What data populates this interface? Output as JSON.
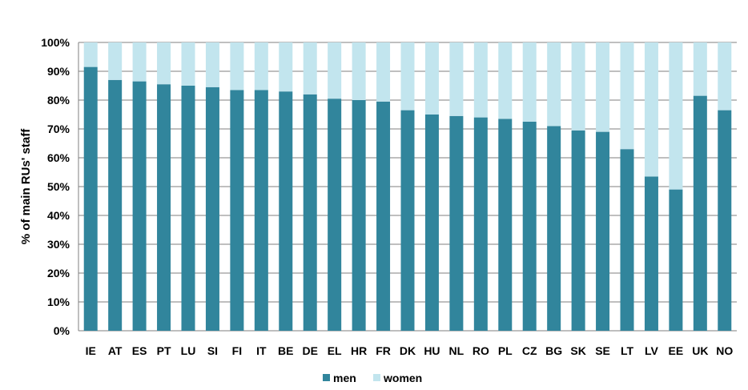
{
  "chart_data": {
    "type": "bar",
    "stacked": true,
    "categories": [
      "IE",
      "AT",
      "ES",
      "PT",
      "LU",
      "SI",
      "FI",
      "IT",
      "BE",
      "DE",
      "EL",
      "HR",
      "FR",
      "DK",
      "HU",
      "NL",
      "RO",
      "PL",
      "CZ",
      "BG",
      "SK",
      "SE",
      "LT",
      "LV",
      "EE",
      "UK",
      "NO"
    ],
    "series": [
      {
        "name": "men",
        "color": "#31859c",
        "values": [
          91.5,
          87,
          86.5,
          85.5,
          85,
          84.5,
          83.5,
          83.5,
          83,
          82,
          80.5,
          80,
          79.5,
          76.5,
          75,
          74.5,
          74,
          73.5,
          72.5,
          71,
          69.5,
          69,
          63,
          53.5,
          49,
          81.5,
          76.5
        ]
      },
      {
        "name": "women",
        "color": "#c2e5ee",
        "values": [
          8.5,
          13,
          13.5,
          14.5,
          15,
          15.5,
          16.5,
          16.5,
          17,
          18,
          19.5,
          20,
          20.5,
          23.5,
          25,
          25.5,
          26,
          26.5,
          27.5,
          29,
          30.5,
          31,
          37,
          46.5,
          51,
          18.5,
          23.5
        ]
      }
    ],
    "ylabel": "% of main RUs' staff",
    "ylim": [
      0,
      100
    ],
    "yticks": [
      "0%",
      "10%",
      "20%",
      "30%",
      "40%",
      "50%",
      "60%",
      "70%",
      "80%",
      "90%",
      "100%"
    ],
    "grid": true,
    "legend_position": "bottom"
  }
}
